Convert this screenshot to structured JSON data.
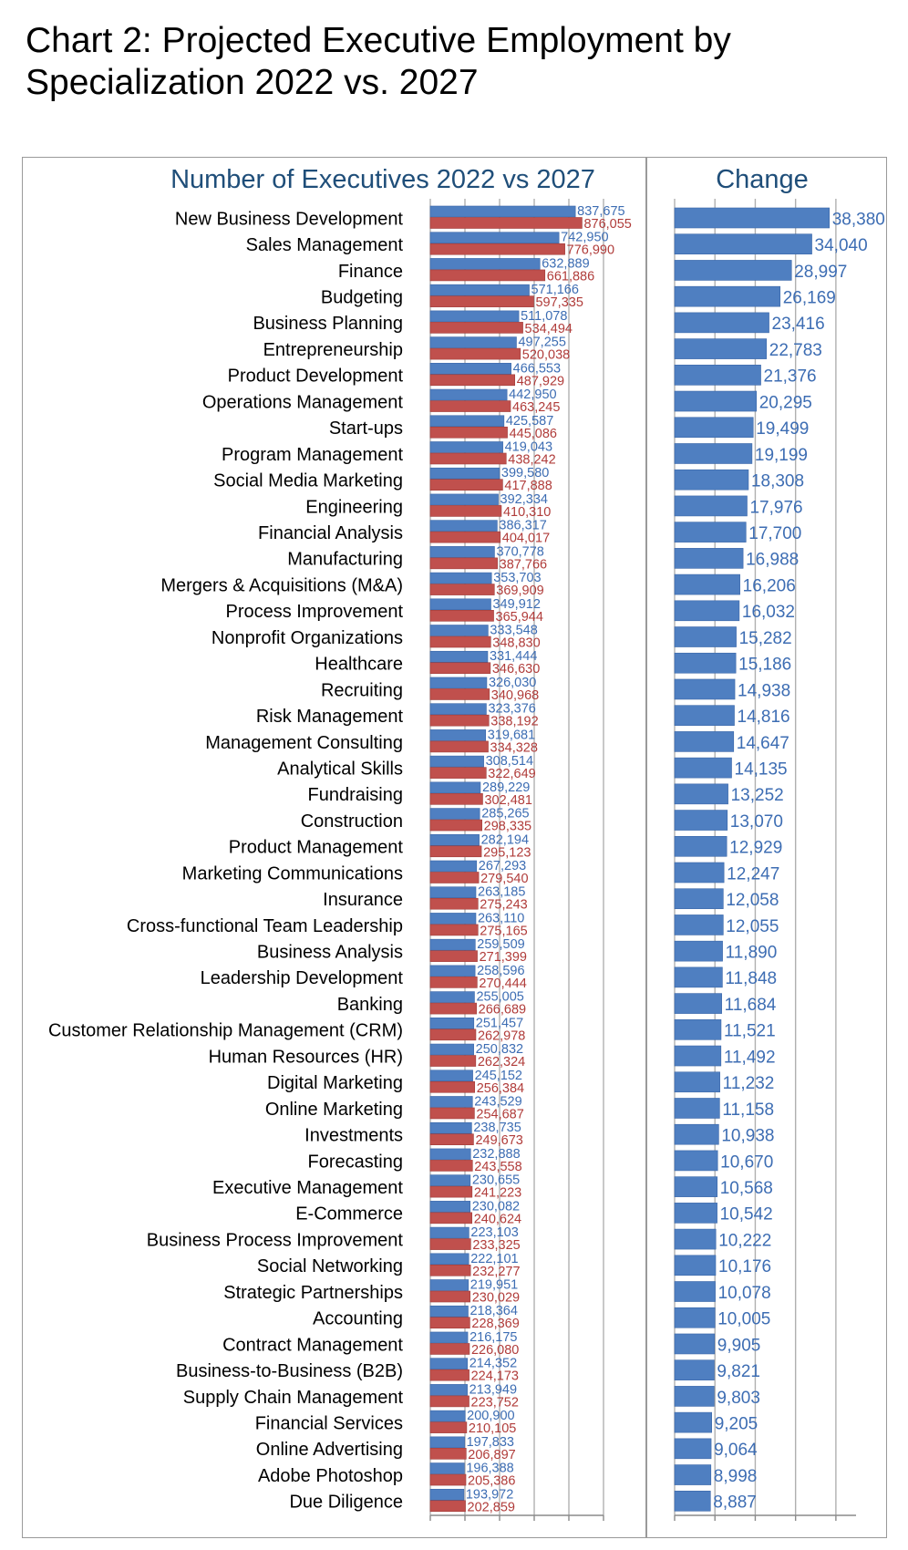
{
  "title": "Chart 2: Projected Executive Employment by Specialization 2022 vs. 2027",
  "colors": {
    "bar2022": "#4f7fc1",
    "bar2027": "#c0504d",
    "change": "#4f7fc1",
    "heading": "#1f4e79"
  },
  "chart_data": [
    {
      "type": "bar",
      "orientation": "horizontal",
      "title": "Number of Executives 2022 vs 2027",
      "categories": [
        "New Business Development",
        "Sales Management",
        "Finance",
        "Budgeting",
        "Business Planning",
        "Entrepreneurship",
        "Product Development",
        "Operations Management",
        "Start-ups",
        "Program Management",
        "Social Media Marketing",
        "Engineering",
        "Financial Analysis",
        "Manufacturing",
        "Mergers & Acquisitions (M&A)",
        "Process Improvement",
        "Nonprofit Organizations",
        "Healthcare",
        "Recruiting",
        "Risk Management",
        "Management Consulting",
        "Analytical Skills",
        "Fundraising",
        "Construction",
        "Product Management",
        "Marketing Communications",
        "Insurance",
        "Cross-functional Team Leadership",
        "Business Analysis",
        "Leadership Development",
        "Banking",
        "Customer Relationship Management (CRM)",
        "Human Resources (HR)",
        "Digital Marketing",
        "Online Marketing",
        "Investments",
        "Forecasting",
        "Executive Management",
        "E-Commerce",
        "Business Process Improvement",
        "Social Networking",
        "Strategic Partnerships",
        "Accounting",
        "Contract Management",
        "Business-to-Business (B2B)",
        "Supply Chain Management",
        "Financial Services",
        "Online Advertising",
        "Adobe Photoshop",
        "Due Diligence"
      ],
      "series": [
        {
          "values": [
            837675,
            742950,
            632889,
            571166,
            511078,
            497255,
            466553,
            442950,
            425587,
            419043,
            399580,
            392334,
            386317,
            370778,
            353703,
            349912,
            333548,
            331444,
            326030,
            323376,
            319681,
            308514,
            289229,
            285265,
            282194,
            267293,
            263185,
            263110,
            259509,
            258596,
            255005,
            251457,
            250832,
            245152,
            243529,
            238735,
            232888,
            230655,
            230082,
            223103,
            222101,
            219951,
            218364,
            216175,
            214352,
            213949,
            200900,
            197833,
            196388,
            193972
          ],
          "labels": [
            "837,675",
            "742,950",
            "632,889",
            "571,166",
            "511,078",
            "497,255",
            "466,553",
            "442,950",
            "425,587",
            "419,043",
            "399,580",
            "392,334",
            "386,317",
            "370,778",
            "353,703",
            "349,912",
            "333,548",
            "331,444",
            "326,030",
            "323,376",
            "319,681",
            "308,514",
            "289,229",
            "285,265",
            "282,194",
            "267,293",
            "263,185",
            "263,110",
            "259,509",
            "258,596",
            "255,005",
            "251,457",
            "250,832",
            "245,152",
            "243,529",
            "238,735",
            "232,888",
            "230,655",
            "230,082",
            "223,103",
            "222,101",
            "219,951",
            "218,364",
            "216,175",
            "214,352",
            "213,949",
            "200,900",
            "197,833",
            "196,388",
            "193,972"
          ]
        },
        {
          "values": [
            876055,
            776990,
            661886,
            597335,
            534494,
            520038,
            487929,
            463245,
            445086,
            438242,
            417888,
            410310,
            404017,
            387766,
            369909,
            365944,
            348830,
            346630,
            340968,
            338192,
            334328,
            322649,
            302481,
            298335,
            295123,
            279540,
            275243,
            275165,
            271399,
            270444,
            266689,
            262978,
            262324,
            256384,
            254687,
            249673,
            243558,
            241223,
            240624,
            233325,
            232277,
            230029,
            228369,
            226080,
            224173,
            223752,
            210105,
            206897,
            205386,
            202859
          ],
          "labels": [
            "876,055",
            "776,990",
            "661,886",
            "597,335",
            "534,494",
            "520,038",
            "487,929",
            "463,245",
            "445,086",
            "438,242",
            "417,888",
            "410,310",
            "404,017",
            "387,766",
            "369,909",
            "365,944",
            "348,830",
            "346,630",
            "340,968",
            "338,192",
            "334,328",
            "322,649",
            "302,481",
            "298,335",
            "295,123",
            "279,540",
            "275,243",
            "275,165",
            "271,399",
            "270,444",
            "266,689",
            "262,978",
            "262,324",
            "256,384",
            "254,687",
            "249,673",
            "243,558",
            "241,223",
            "240,624",
            "233,325",
            "232,277",
            "230,029",
            "228,369",
            "226,080",
            "224,173",
            "223,752",
            "210,105",
            "206,897",
            "205,386",
            "202,859"
          ]
        }
      ],
      "xlim": [
        0,
        1000000
      ],
      "grid": true
    },
    {
      "type": "bar",
      "orientation": "horizontal",
      "title": "Change",
      "values": [
        38380,
        34040,
        28997,
        26169,
        23416,
        22783,
        21376,
        20295,
        19499,
        19199,
        18308,
        17976,
        17700,
        16988,
        16206,
        16032,
        15282,
        15186,
        14938,
        14816,
        14647,
        14135,
        13252,
        13070,
        12929,
        12247,
        12058,
        12055,
        11890,
        11848,
        11684,
        11521,
        11492,
        11232,
        11158,
        10938,
        10670,
        10568,
        10542,
        10222,
        10176,
        10078,
        10005,
        9905,
        9821,
        9803,
        9205,
        9064,
        8998,
        8887
      ],
      "labels": [
        "38,380",
        "34,040",
        "28,997",
        "26,169",
        "23,416",
        "22,783",
        "21,376",
        "20,295",
        "19,499",
        "19,199",
        "18,308",
        "17,976",
        "17,700",
        "16,988",
        "16,206",
        "16,032",
        "15,282",
        "15,186",
        "14,938",
        "14,816",
        "14,647",
        "14,135",
        "13,252",
        "13,070",
        "12,929",
        "12,247",
        "12,058",
        "12,055",
        "11,890",
        "11,848",
        "11,684",
        "11,521",
        "11,492",
        "11,232",
        "11,158",
        "10,938",
        "10,670",
        "10,568",
        "10,542",
        "10,222",
        "10,176",
        "10,078",
        "10,005",
        "9,905",
        "9,821",
        "9,803",
        "9,205",
        "9,064",
        "8,998",
        "8,887"
      ],
      "xlim": [
        0,
        45000
      ],
      "grid": true
    }
  ]
}
